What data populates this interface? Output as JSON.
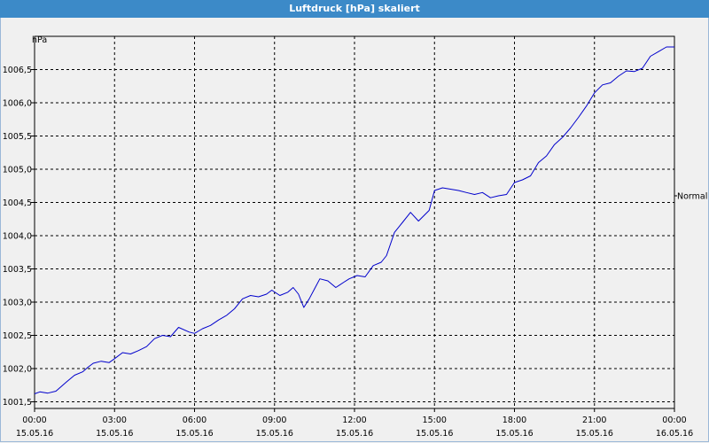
{
  "window": {
    "title": "Luftdruck [hPa] skaliert"
  },
  "chart_data": {
    "type": "line",
    "title": "Luftdruck [hPa] skaliert",
    "ylabel": "hPa",
    "xlim": [
      0,
      24
    ],
    "ylim": [
      1001.4,
      1007.0
    ],
    "grid": true,
    "y_ticks": [
      1001.5,
      1002.0,
      1002.5,
      1003.0,
      1003.5,
      1004.0,
      1004.5,
      1005.0,
      1005.5,
      1006.0,
      1006.5
    ],
    "y_tick_labels": [
      "1001,5",
      "1002,0",
      "1002,5",
      "1003,0",
      "1003,5",
      "1004,0",
      "1004,5",
      "1005,0",
      "1005,5",
      "1006,0",
      "1006,5"
    ],
    "x_ticks": [
      0,
      3,
      6,
      9,
      12,
      15,
      18,
      21,
      24
    ],
    "x_tick_times": [
      "00:00",
      "03:00",
      "06:00",
      "09:00",
      "12:00",
      "15:00",
      "18:00",
      "21:00",
      "00:00"
    ],
    "x_tick_dates": [
      "15.05.16",
      "15.05.16",
      "15.05.16",
      "15.05.16",
      "15.05.16",
      "15.05.16",
      "15.05.16",
      "15.05.16",
      "16.05.16"
    ],
    "series": [
      {
        "name": "",
        "color": "#0000cc",
        "x": [
          0.0,
          0.2,
          0.5,
          0.8,
          1.0,
          1.2,
          1.5,
          1.8,
          2.0,
          2.2,
          2.5,
          2.8,
          3.0,
          3.3,
          3.6,
          3.9,
          4.2,
          4.5,
          4.8,
          5.1,
          5.4,
          5.8,
          6.0,
          6.3,
          6.6,
          6.9,
          7.2,
          7.5,
          7.8,
          8.1,
          8.4,
          8.7,
          8.9,
          9.2,
          9.5,
          9.7,
          9.9,
          10.1,
          10.3,
          10.5,
          10.7,
          11.0,
          11.3,
          11.6,
          11.8,
          12.1,
          12.4,
          12.7,
          13.0,
          13.2,
          13.5,
          13.8,
          14.1,
          14.4,
          14.6,
          14.8,
          15.0,
          15.3,
          15.6,
          15.9,
          16.2,
          16.5,
          16.8,
          17.1,
          17.4,
          17.7,
          18.0,
          18.3,
          18.6,
          18.9,
          19.2,
          19.5,
          19.8,
          20.1,
          20.4,
          20.7,
          21.0,
          21.3,
          21.6,
          21.9,
          22.2,
          22.5,
          22.8,
          23.1,
          23.4,
          23.7,
          24.0
        ],
        "y": [
          1001.62,
          1001.65,
          1001.63,
          1001.66,
          1001.73,
          1001.8,
          1001.9,
          1001.95,
          1002.02,
          1002.08,
          1002.11,
          1002.09,
          1002.15,
          1002.24,
          1002.22,
          1002.27,
          1002.33,
          1002.45,
          1002.5,
          1002.48,
          1002.62,
          1002.55,
          1002.53,
          1002.6,
          1002.65,
          1002.73,
          1002.8,
          1002.9,
          1003.05,
          1003.1,
          1003.08,
          1003.12,
          1003.18,
          1003.1,
          1003.15,
          1003.22,
          1003.12,
          1002.92,
          1003.05,
          1003.2,
          1003.35,
          1003.32,
          1003.22,
          1003.3,
          1003.35,
          1003.4,
          1003.38,
          1003.55,
          1003.6,
          1003.7,
          1004.05,
          1004.2,
          1004.35,
          1004.22,
          1004.3,
          1004.38,
          1004.68,
          1004.72,
          1004.7,
          1004.68,
          1004.65,
          1004.62,
          1004.65,
          1004.57,
          1004.6,
          1004.62,
          1004.8,
          1004.84,
          1004.9,
          1005.1,
          1005.2,
          1005.37,
          1005.48,
          1005.62,
          1005.78,
          1005.95,
          1006.15,
          1006.27,
          1006.3,
          1006.4,
          1006.48,
          1006.47,
          1006.52,
          1006.7,
          1006.77,
          1006.84,
          1006.84
        ]
      }
    ],
    "annotations": [
      {
        "text": "Normal",
        "y": 1004.6
      }
    ]
  }
}
